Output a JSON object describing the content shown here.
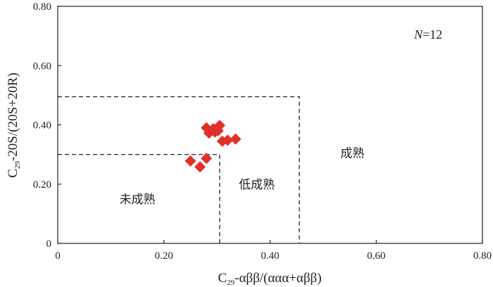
{
  "chart_data": {
    "type": "scatter",
    "xlim": [
      0,
      0.8
    ],
    "ylim": [
      0,
      0.8
    ],
    "xticks": [
      "0",
      "0.20",
      "0.40",
      "0.60",
      "0.80"
    ],
    "yticks": [
      "0",
      "0.20",
      "0.40",
      "0.60",
      "0.80"
    ],
    "xticks_values": [
      0,
      0.2,
      0.4,
      0.6,
      0.8
    ],
    "yticks_values": [
      0,
      0.2,
      0.4,
      0.6,
      0.8
    ],
    "xlabel": {
      "base": "C",
      "sub": "29",
      "rest": "-αββ/(ααα+αββ)"
    },
    "ylabel": {
      "base": "C",
      "sub": "29",
      "rest": "-20S/(20S+20R)"
    },
    "grid": false,
    "marker_color": "#e0302a",
    "marker": "diamond",
    "annotation": {
      "italic": "N",
      "rest": "=12"
    },
    "regions": [
      {
        "label": "未成熟",
        "x": 0.15,
        "y": 0.15
      },
      {
        "label": "低成熟",
        "x": 0.375,
        "y": 0.2
      },
      {
        "label": "成熟",
        "x": 0.555,
        "y": 0.305
      }
    ],
    "boundaries": [
      {
        "points": [
          [
            0,
            0.3
          ],
          [
            0.305,
            0.3
          ],
          [
            0.305,
            0
          ]
        ]
      },
      {
        "points": [
          [
            0,
            0.495
          ],
          [
            0.455,
            0.495
          ],
          [
            0.455,
            0
          ]
        ]
      }
    ],
    "points": [
      {
        "x": 0.25,
        "y": 0.278
      },
      {
        "x": 0.268,
        "y": 0.258
      },
      {
        "x": 0.28,
        "y": 0.287
      },
      {
        "x": 0.28,
        "y": 0.39
      },
      {
        "x": 0.285,
        "y": 0.372
      },
      {
        "x": 0.293,
        "y": 0.387
      },
      {
        "x": 0.296,
        "y": 0.376
      },
      {
        "x": 0.302,
        "y": 0.38
      },
      {
        "x": 0.305,
        "y": 0.398
      },
      {
        "x": 0.31,
        "y": 0.345
      },
      {
        "x": 0.32,
        "y": 0.348
      },
      {
        "x": 0.335,
        "y": 0.352
      }
    ]
  }
}
